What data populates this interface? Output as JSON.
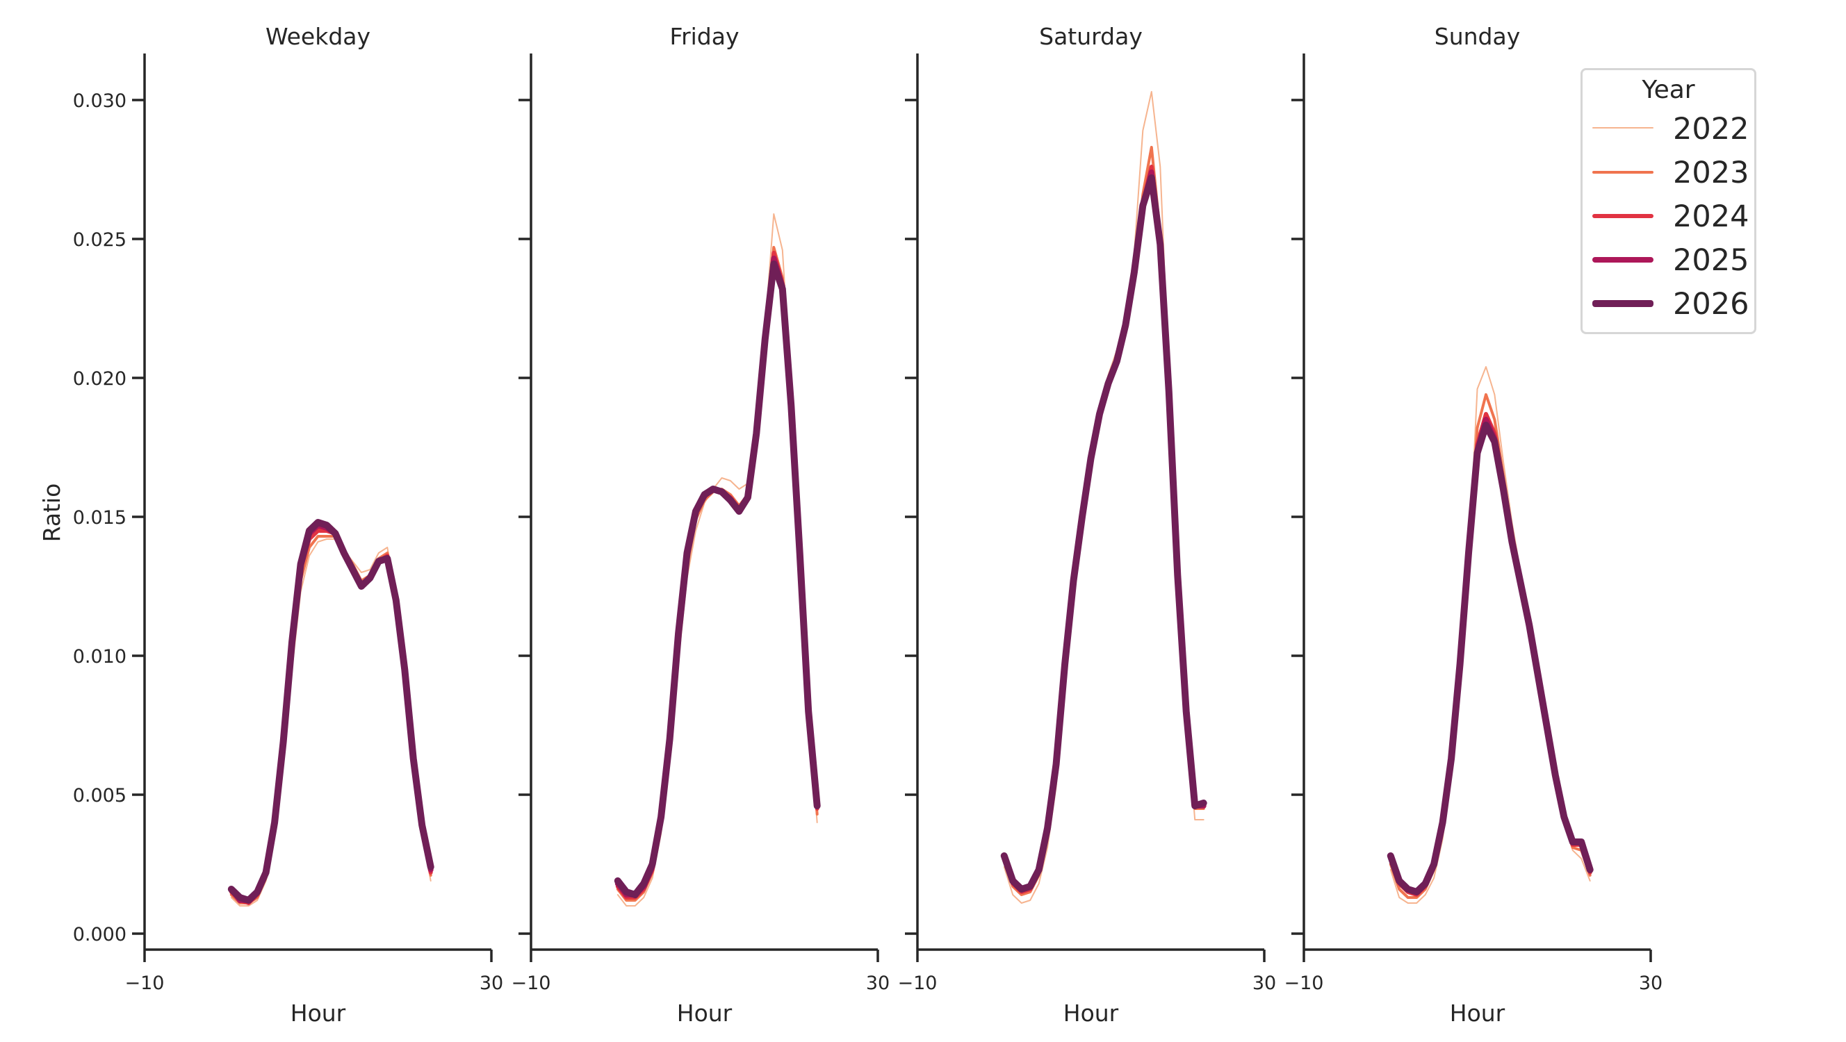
{
  "chart_data": {
    "type": "line",
    "layout": "facet-row",
    "xlabel": "Hour",
    "ylabel": "Ratio",
    "xlim": [
      -10,
      30
    ],
    "ylim": [
      -0.0006,
      0.0317
    ],
    "xticks": [
      -10,
      30
    ],
    "yticks": [
      0.0,
      0.005,
      0.01,
      0.015,
      0.02,
      0.025,
      0.03
    ],
    "ytick_labels": [
      "0.000",
      "0.005",
      "0.010",
      "0.015",
      "0.020",
      "0.025",
      "0.030"
    ],
    "xtick_labels": [
      "−10",
      "30"
    ],
    "grid": false,
    "legend": {
      "title": "Year",
      "position": "upper right",
      "entries": [
        {
          "label": "2022",
          "color": "#f6b48f",
          "width": 2
        },
        {
          "label": "2023",
          "color": "#f0744f",
          "width": 4
        },
        {
          "label": "2024",
          "color": "#e13342",
          "width": 6
        },
        {
          "label": "2025",
          "color": "#ad1759",
          "width": 8
        },
        {
          "label": "2026",
          "color": "#701f57",
          "width": 10
        }
      ]
    },
    "x": [
      0,
      1,
      2,
      3,
      4,
      5,
      6,
      7,
      8,
      9,
      10,
      11,
      12,
      13,
      14,
      15,
      16,
      17,
      18,
      19,
      20,
      21,
      22,
      23
    ],
    "panels": [
      {
        "title": "Weekday",
        "series": [
          {
            "name": "2022",
            "values": [
              0.0013,
              0.001,
              0.001,
              0.0012,
              0.0019,
              0.0035,
              0.0062,
              0.0095,
              0.0123,
              0.0136,
              0.0141,
              0.0142,
              0.0142,
              0.0138,
              0.0134,
              0.013,
              0.0131,
              0.0137,
              0.0139,
              0.0121,
              0.0095,
              0.0062,
              0.0037,
              0.0019
            ]
          },
          {
            "name": "2023",
            "values": [
              0.0014,
              0.0011,
              0.0011,
              0.0013,
              0.002,
              0.0037,
              0.0065,
              0.01,
              0.0127,
              0.0139,
              0.0143,
              0.0143,
              0.0143,
              0.0138,
              0.0133,
              0.0127,
              0.0129,
              0.0135,
              0.0137,
              0.012,
              0.0094,
              0.0062,
              0.0038,
              0.0021
            ]
          },
          {
            "name": "2024",
            "values": [
              0.0015,
              0.0012,
              0.0011,
              0.0014,
              0.0021,
              0.0039,
              0.0067,
              0.0103,
              0.0131,
              0.0142,
              0.0145,
              0.0145,
              0.0144,
              0.0137,
              0.0131,
              0.0126,
              0.0128,
              0.0134,
              0.0136,
              0.012,
              0.0094,
              0.0062,
              0.0038,
              0.0022
            ]
          },
          {
            "name": "2025",
            "values": [
              0.0016,
              0.0012,
              0.0012,
              0.0015,
              0.0022,
              0.004,
              0.0068,
              0.0104,
              0.0132,
              0.0144,
              0.0147,
              0.0146,
              0.0144,
              0.0137,
              0.0131,
              0.0125,
              0.0128,
              0.0134,
              0.0135,
              0.012,
              0.0095,
              0.0063,
              0.0039,
              0.0023
            ]
          },
          {
            "name": "2026",
            "values": [
              0.0016,
              0.0013,
              0.0012,
              0.0015,
              0.0022,
              0.004,
              0.0069,
              0.0105,
              0.0133,
              0.0145,
              0.0148,
              0.0147,
              0.0144,
              0.0137,
              0.0131,
              0.0125,
              0.0128,
              0.0134,
              0.0135,
              0.012,
              0.0095,
              0.0063,
              0.0039,
              0.0024
            ]
          }
        ]
      },
      {
        "title": "Friday",
        "series": [
          {
            "name": "2022",
            "values": [
              0.0014,
              0.001,
              0.001,
              0.0013,
              0.002,
              0.0036,
              0.0062,
              0.0098,
              0.0128,
              0.0145,
              0.0155,
              0.016,
              0.0164,
              0.0163,
              0.016,
              0.0162,
              0.0182,
              0.0218,
              0.0259,
              0.0246,
              0.0195,
              0.0138,
              0.008,
              0.004
            ]
          },
          {
            "name": "2023",
            "values": [
              0.0016,
              0.0012,
              0.0012,
              0.0015,
              0.0022,
              0.0039,
              0.0066,
              0.0103,
              0.0132,
              0.0149,
              0.0156,
              0.0159,
              0.016,
              0.0158,
              0.0154,
              0.0158,
              0.0181,
              0.0215,
              0.0247,
              0.0236,
              0.0192,
              0.0138,
              0.008,
              0.0043
            ]
          },
          {
            "name": "2024",
            "values": [
              0.0017,
              0.0013,
              0.0013,
              0.0016,
              0.0023,
              0.0041,
              0.0068,
              0.0106,
              0.0135,
              0.0151,
              0.0157,
              0.016,
              0.0159,
              0.0157,
              0.0153,
              0.0157,
              0.018,
              0.0214,
              0.0245,
              0.0234,
              0.0191,
              0.0137,
              0.008,
              0.0045
            ]
          },
          {
            "name": "2025",
            "values": [
              0.0018,
              0.0014,
              0.0014,
              0.0017,
              0.0024,
              0.0042,
              0.0069,
              0.0107,
              0.0136,
              0.0152,
              0.0158,
              0.016,
              0.0159,
              0.0156,
              0.0152,
              0.0157,
              0.018,
              0.0214,
              0.0243,
              0.0233,
              0.019,
              0.0137,
              0.008,
              0.0046
            ]
          },
          {
            "name": "2026",
            "values": [
              0.0019,
              0.0015,
              0.0014,
              0.0018,
              0.0025,
              0.0042,
              0.007,
              0.0108,
              0.0137,
              0.0152,
              0.0158,
              0.016,
              0.0159,
              0.0156,
              0.0152,
              0.0157,
              0.018,
              0.0214,
              0.0241,
              0.0232,
              0.019,
              0.0137,
              0.008,
              0.0046
            ]
          }
        ]
      },
      {
        "title": "Saturday",
        "series": [
          {
            "name": "2022",
            "values": [
              0.0024,
              0.0014,
              0.0011,
              0.0012,
              0.0018,
              0.0031,
              0.0053,
              0.009,
              0.0124,
              0.0149,
              0.0172,
              0.0189,
              0.0201,
              0.021,
              0.0223,
              0.0245,
              0.0289,
              0.0303,
              0.0276,
              0.02,
              0.013,
              0.008,
              0.0041,
              0.0041
            ]
          },
          {
            "name": "2023",
            "values": [
              0.0026,
              0.0017,
              0.0014,
              0.0015,
              0.0021,
              0.0035,
              0.0058,
              0.0094,
              0.0126,
              0.015,
              0.0172,
              0.0188,
              0.02,
              0.0208,
              0.0221,
              0.024,
              0.0266,
              0.0283,
              0.0252,
              0.0197,
              0.0129,
              0.008,
              0.0045,
              0.0045
            ]
          },
          {
            "name": "2024",
            "values": [
              0.0027,
              0.0018,
              0.0015,
              0.0016,
              0.0022,
              0.0037,
              0.006,
              0.0096,
              0.0127,
              0.015,
              0.0171,
              0.0187,
              0.0199,
              0.0207,
              0.0219,
              0.0239,
              0.0263,
              0.0276,
              0.0249,
              0.0195,
              0.0129,
              0.008,
              0.0046,
              0.0046
            ]
          },
          {
            "name": "2025",
            "values": [
              0.0028,
              0.0019,
              0.0016,
              0.0017,
              0.0023,
              0.0038,
              0.0061,
              0.0097,
              0.0127,
              0.015,
              0.0171,
              0.0187,
              0.0198,
              0.0206,
              0.0219,
              0.0238,
              0.0262,
              0.0274,
              0.0248,
              0.0195,
              0.0129,
              0.008,
              0.0046,
              0.0046
            ]
          },
          {
            "name": "2026",
            "values": [
              0.0028,
              0.0019,
              0.0016,
              0.0017,
              0.0023,
              0.0038,
              0.0061,
              0.0097,
              0.0127,
              0.015,
              0.0171,
              0.0187,
              0.0198,
              0.0206,
              0.0219,
              0.0238,
              0.0262,
              0.0272,
              0.0248,
              0.0195,
              0.0129,
              0.008,
              0.0046,
              0.0047
            ]
          }
        ]
      },
      {
        "title": "Sunday",
        "series": [
          {
            "name": "2022",
            "values": [
              0.0023,
              0.0013,
              0.0011,
              0.0011,
              0.0014,
              0.002,
              0.0034,
              0.0057,
              0.009,
              0.0132,
              0.0196,
              0.0204,
              0.0194,
              0.017,
              0.0148,
              0.013,
              0.0113,
              0.0094,
              0.0075,
              0.0056,
              0.004,
              0.003,
              0.0027,
              0.0019
            ]
          },
          {
            "name": "2023",
            "values": [
              0.0025,
              0.0016,
              0.0013,
              0.0013,
              0.0016,
              0.0023,
              0.0037,
              0.006,
              0.0094,
              0.0135,
              0.0182,
              0.0194,
              0.0185,
              0.0165,
              0.0145,
              0.0128,
              0.0112,
              0.0094,
              0.0075,
              0.0057,
              0.0041,
              0.0031,
              0.003,
              0.0021
            ]
          },
          {
            "name": "2024",
            "values": [
              0.0027,
              0.0018,
              0.0015,
              0.0014,
              0.0017,
              0.0024,
              0.0039,
              0.0062,
              0.0096,
              0.0136,
              0.0176,
              0.0187,
              0.018,
              0.0162,
              0.0143,
              0.0127,
              0.0112,
              0.0094,
              0.0075,
              0.0057,
              0.0042,
              0.0032,
              0.0032,
              0.0022
            ]
          },
          {
            "name": "2025",
            "values": [
              0.0028,
              0.0019,
              0.0016,
              0.0015,
              0.0018,
              0.0025,
              0.004,
              0.0063,
              0.0097,
              0.0137,
              0.0174,
              0.0185,
              0.0178,
              0.0161,
              0.0142,
              0.0126,
              0.0111,
              0.0094,
              0.0075,
              0.0057,
              0.0042,
              0.0033,
              0.0033,
              0.0023
            ]
          },
          {
            "name": "2026",
            "values": [
              0.0028,
              0.0019,
              0.0016,
              0.0015,
              0.0018,
              0.0025,
              0.004,
              0.0063,
              0.0097,
              0.0137,
              0.0173,
              0.0183,
              0.0177,
              0.016,
              0.0141,
              0.0126,
              0.0111,
              0.0093,
              0.0075,
              0.0057,
              0.0042,
              0.0033,
              0.0033,
              0.0023
            ]
          }
        ]
      }
    ]
  }
}
